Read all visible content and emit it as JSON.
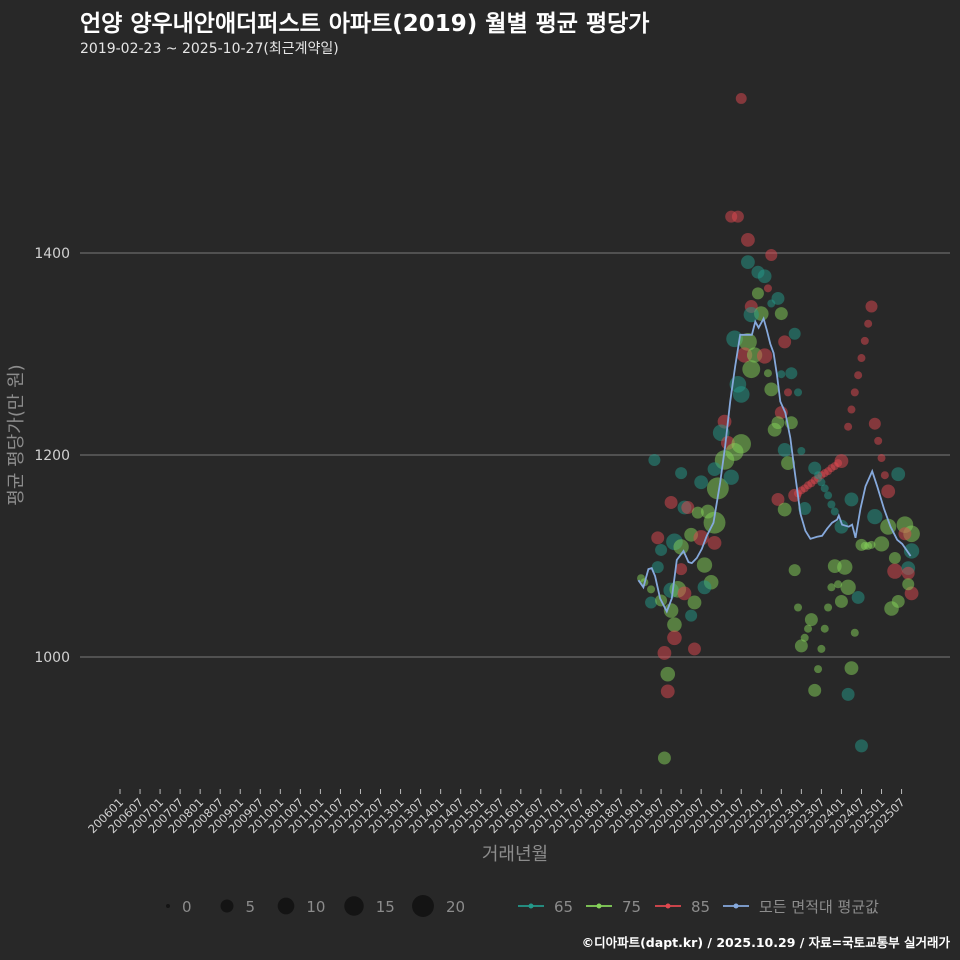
{
  "chart_data": {
    "type": "scatter",
    "title": "언양 양우내안애더퍼스트 아파트(2019) 월별 평균 평당가",
    "subtitle": "2019-02-23 ~ 2025-10-27(최근계약일)",
    "xlabel": "거래년월",
    "ylabel": "평균 평당가(만 원)",
    "x_index_origin": "2006-01",
    "x_index_unit": "month",
    "xlim": [
      0,
      240
    ],
    "ylim": [
      870,
      1570
    ],
    "y_ticks": [
      1000,
      1200,
      1400
    ],
    "grid": true,
    "x_ticks": [
      "200601",
      "200607",
      "200701",
      "200707",
      "200801",
      "200807",
      "200901",
      "200907",
      "201001",
      "201007",
      "201101",
      "201107",
      "201201",
      "201207",
      "201301",
      "201307",
      "201401",
      "201407",
      "201501",
      "201507",
      "201601",
      "201607",
      "201701",
      "201707",
      "201801",
      "201807",
      "201901",
      "201907",
      "202001",
      "202007",
      "202101",
      "202107",
      "202201",
      "202207",
      "202301",
      "202307",
      "202401",
      "202407",
      "202501",
      "202507"
    ],
    "colors": {
      "65": "#23998a",
      "75": "#86d35a",
      "85": "#e0484f",
      "avg": "#86a9dc"
    },
    "size_legend": {
      "values": [
        0,
        5,
        10,
        15,
        20
      ]
    },
    "color_legend": [
      {
        "key": "65",
        "label": "65"
      },
      {
        "key": "75",
        "label": "75"
      },
      {
        "key": "85",
        "label": "85"
      },
      {
        "key": "avg",
        "label": "모든 면적대 평균값"
      }
    ],
    "legend_position": "bottom",
    "points_fields": [
      "month_index",
      "value",
      "count",
      "area"
    ],
    "points": [
      [
        186,
        1553,
        3,
        "85"
      ],
      [
        183,
        1436,
        4,
        "85"
      ],
      [
        185,
        1436,
        4,
        "85"
      ],
      [
        188,
        1413,
        6,
        "85"
      ],
      [
        195,
        1398,
        4,
        "85"
      ],
      [
        188,
        1391,
        6,
        "65"
      ],
      [
        191,
        1381,
        5,
        "65"
      ],
      [
        193,
        1377,
        6,
        "65"
      ],
      [
        194,
        1365,
        1,
        "85"
      ],
      [
        191,
        1360,
        4,
        "75"
      ],
      [
        197,
        1355,
        5,
        "65"
      ],
      [
        195,
        1350,
        1,
        "65"
      ],
      [
        189,
        1347,
        5,
        "85"
      ],
      [
        198,
        1340,
        5,
        "75"
      ],
      [
        192,
        1340,
        7,
        "75"
      ],
      [
        189,
        1339,
        8,
        "65"
      ],
      [
        202,
        1320,
        4,
        "65"
      ],
      [
        184,
        1315,
        10,
        "65"
      ],
      [
        188,
        1312,
        12,
        "75"
      ],
      [
        199,
        1312,
        5,
        "85"
      ],
      [
        187,
        1299,
        8,
        "85"
      ],
      [
        190,
        1299,
        8,
        "75"
      ],
      [
        193,
        1298,
        8,
        "85"
      ],
      [
        189,
        1285,
        12,
        "75"
      ],
      [
        194,
        1281,
        1,
        "75"
      ],
      [
        198,
        1280,
        1,
        "65"
      ],
      [
        201,
        1281,
        4,
        "65"
      ],
      [
        185,
        1270,
        10,
        "65"
      ],
      [
        186,
        1260,
        10,
        "65"
      ],
      [
        195,
        1265,
        6,
        "75"
      ],
      [
        200,
        1262,
        1,
        "85"
      ],
      [
        203,
        1262,
        1,
        "65"
      ],
      [
        198,
        1242,
        5,
        "85"
      ],
      [
        201,
        1232,
        5,
        "75"
      ],
      [
        196,
        1225,
        6,
        "75"
      ],
      [
        197,
        1232,
        5,
        "75"
      ],
      [
        181,
        1233,
        6,
        "85"
      ],
      [
        180,
        1222,
        10,
        "65"
      ],
      [
        182,
        1212,
        6,
        "85"
      ],
      [
        186,
        1211,
        15,
        "75"
      ],
      [
        184,
        1203,
        12,
        "75"
      ],
      [
        199,
        1205,
        6,
        "65"
      ],
      [
        204,
        1204,
        1,
        "65"
      ],
      [
        160,
        1195,
        4,
        "65"
      ],
      [
        181,
        1195,
        15,
        "75"
      ],
      [
        178,
        1186,
        6,
        "65"
      ],
      [
        200,
        1192,
        6,
        "75"
      ],
      [
        168,
        1182,
        4,
        "65"
      ],
      [
        174,
        1173,
        6,
        "65"
      ],
      [
        179,
        1167,
        20,
        "75"
      ],
      [
        183,
        1178,
        8,
        "65"
      ],
      [
        208,
        1187,
        5,
        "65"
      ],
      [
        202,
        1160,
        5,
        "85"
      ],
      [
        197,
        1156,
        5,
        "85"
      ],
      [
        165,
        1153,
        5,
        "85"
      ],
      [
        169,
        1148,
        6,
        "65"
      ],
      [
        170,
        1148,
        5,
        "85"
      ],
      [
        199,
        1146,
        6,
        "75"
      ],
      [
        173,
        1143,
        4,
        "75"
      ],
      [
        176,
        1144,
        6,
        "75"
      ],
      [
        205,
        1147,
        5,
        "65"
      ],
      [
        178,
        1133,
        20,
        "75"
      ],
      [
        216,
        1129,
        6,
        "65"
      ],
      [
        219,
        1156,
        6,
        "65"
      ],
      [
        226,
        1139,
        8,
        "65"
      ],
      [
        230,
        1129,
        9,
        "75"
      ],
      [
        235,
        1131,
        10,
        "75"
      ],
      [
        237,
        1122,
        10,
        "75"
      ],
      [
        233,
        1181,
        6,
        "65"
      ],
      [
        230,
        1164,
        6,
        "85"
      ],
      [
        235,
        1122,
        5,
        "85"
      ],
      [
        222,
        1111,
        4,
        "75"
      ],
      [
        228,
        1112,
        8,
        "75"
      ],
      [
        161,
        1118,
        5,
        "85"
      ],
      [
        162,
        1106,
        4,
        "65"
      ],
      [
        166,
        1114,
        10,
        "65"
      ],
      [
        168,
        1109,
        8,
        "75"
      ],
      [
        171,
        1121,
        6,
        "75"
      ],
      [
        174,
        1118,
        8,
        "85"
      ],
      [
        178,
        1113,
        6,
        "85"
      ],
      [
        161,
        1089,
        4,
        "65"
      ],
      [
        175,
        1091,
        8,
        "75"
      ],
      [
        168,
        1087,
        4,
        "85"
      ],
      [
        214,
        1090,
        6,
        "75"
      ],
      [
        217,
        1089,
        8,
        "75"
      ],
      [
        202,
        1086,
        4,
        "75"
      ],
      [
        232,
        1098,
        4,
        "75"
      ],
      [
        236,
        1088,
        6,
        "65"
      ],
      [
        232,
        1085,
        8,
        "85"
      ],
      [
        236,
        1083,
        5,
        "85"
      ],
      [
        237,
        1063,
        6,
        "85"
      ],
      [
        236,
        1072,
        4,
        "75"
      ],
      [
        237,
        1105,
        8,
        "65"
      ],
      [
        165,
        1066,
        8,
        "65"
      ],
      [
        167,
        1067,
        10,
        "75"
      ],
      [
        169,
        1063,
        6,
        "85"
      ],
      [
        172,
        1054,
        6,
        "75"
      ],
      [
        177,
        1074,
        7,
        "75"
      ],
      [
        175,
        1069,
        6,
        "65"
      ],
      [
        159,
        1054,
        4,
        "65"
      ],
      [
        162,
        1056,
        4,
        "75"
      ],
      [
        218,
        1069,
        8,
        "75"
      ],
      [
        221,
        1059,
        5,
        "65"
      ],
      [
        216,
        1055,
        5,
        "75"
      ],
      [
        213,
        1069,
        1,
        "75"
      ],
      [
        215,
        1072,
        1,
        "75"
      ],
      [
        165,
        1046,
        7,
        "75"
      ],
      [
        171,
        1041,
        4,
        "65"
      ],
      [
        166,
        1032,
        7,
        "75"
      ],
      [
        166,
        1019,
        7,
        "85"
      ],
      [
        203,
        1049,
        1,
        "75"
      ],
      [
        212,
        1049,
        1,
        "75"
      ],
      [
        207,
        1037,
        5,
        "75"
      ],
      [
        206,
        1028,
        1,
        "75"
      ],
      [
        211,
        1028,
        1,
        "75"
      ],
      [
        205,
        1019,
        1,
        "75"
      ],
      [
        204,
        1011,
        5,
        "75"
      ],
      [
        210,
        1008,
        1,
        "75"
      ],
      [
        220,
        1024,
        1,
        "75"
      ],
      [
        233,
        1055,
        5,
        "75"
      ],
      [
        231,
        1048,
        7,
        "75"
      ],
      [
        163,
        1004,
        6,
        "85"
      ],
      [
        172,
        1008,
        5,
        "85"
      ],
      [
        164,
        983,
        7,
        "75"
      ],
      [
        164,
        966,
        6,
        "85"
      ],
      [
        219,
        989,
        6,
        "75"
      ],
      [
        209,
        988,
        1,
        "75"
      ],
      [
        208,
        967,
        5,
        "75"
      ],
      [
        218,
        963,
        5,
        "65"
      ],
      [
        222,
        912,
        5,
        "65"
      ],
      [
        163,
        900,
        5,
        "75"
      ],
      [
        218,
        1228,
        1,
        "85"
      ],
      [
        219,
        1245,
        1,
        "85"
      ],
      [
        220,
        1262,
        1,
        "85"
      ],
      [
        221,
        1279,
        1,
        "85"
      ],
      [
        222,
        1296,
        1,
        "85"
      ],
      [
        223,
        1313,
        1,
        "85"
      ],
      [
        224,
        1330,
        1,
        "85"
      ],
      [
        225,
        1347,
        4,
        "85"
      ],
      [
        226,
        1231,
        4,
        "85"
      ],
      [
        227,
        1214,
        1,
        "85"
      ],
      [
        228,
        1197,
        1,
        "85"
      ],
      [
        229,
        1180,
        1,
        "85"
      ],
      [
        203,
        1162,
        1,
        "85"
      ],
      [
        204,
        1165,
        1,
        "85"
      ],
      [
        205,
        1167,
        1,
        "85"
      ],
      [
        206,
        1170,
        1,
        "85"
      ],
      [
        207,
        1172,
        1,
        "85"
      ],
      [
        208,
        1175,
        1,
        "85"
      ],
      [
        209,
        1177,
        1,
        "85"
      ],
      [
        210,
        1180,
        1,
        "85"
      ],
      [
        211,
        1182,
        1,
        "85"
      ],
      [
        212,
        1184,
        1,
        "85"
      ],
      [
        213,
        1187,
        1,
        "85"
      ],
      [
        214,
        1189,
        1,
        "85"
      ],
      [
        215,
        1192,
        1,
        "85"
      ],
      [
        216,
        1194,
        6,
        "85"
      ],
      [
        209,
        1180,
        1,
        "65"
      ],
      [
        210,
        1173,
        1,
        "65"
      ],
      [
        211,
        1167,
        1,
        "65"
      ],
      [
        212,
        1160,
        1,
        "65"
      ],
      [
        213,
        1151,
        1,
        "65"
      ],
      [
        214,
        1144,
        1,
        "65"
      ],
      [
        156,
        1078,
        1,
        "75"
      ],
      [
        157,
        1074,
        1,
        "75"
      ],
      [
        159,
        1067,
        1,
        "75"
      ],
      [
        223,
        1110,
        1,
        "75"
      ],
      [
        224,
        1110,
        1,
        "75"
      ],
      [
        225,
        1111,
        1,
        "75"
      ]
    ],
    "average_series": {
      "name": "모든 면적대 평균값",
      "x": [
        155.2,
        156.7,
        158.2,
        159.2,
        160.2,
        161.7,
        163.7,
        165.2,
        166.7,
        168.7,
        170.2,
        171.2,
        172.7,
        174.2,
        175.7,
        177.7,
        179.7,
        181.2,
        182.7,
        184.2,
        185.7,
        187.7,
        189.2,
        190.2,
        191.2,
        192.7,
        193.7,
        194.7,
        195.7,
        196.7,
        197.7,
        199.2,
        200.7,
        201.7,
        203.7,
        205.2,
        206.7,
        208.7,
        210.2,
        211.7,
        213.2,
        214.7,
        215.2,
        216.2,
        218.2,
        219.2,
        220.2,
        221.7,
        223.2,
        225.2,
        226.7,
        228.7,
        230.7,
        232.7,
        234.2,
        236.7
      ],
      "y": [
        1076,
        1069,
        1087,
        1088,
        1080,
        1058,
        1045,
        1058,
        1096,
        1105,
        1094,
        1093,
        1098,
        1107,
        1120,
        1133,
        1173,
        1209,
        1253,
        1288,
        1319,
        1319,
        1319,
        1332,
        1326,
        1335,
        1323,
        1310,
        1301,
        1279,
        1253,
        1242,
        1217,
        1191,
        1142,
        1125,
        1117,
        1119,
        1120,
        1127,
        1133,
        1136,
        1140,
        1131,
        1129,
        1131,
        1118,
        1147,
        1169,
        1184,
        1169,
        1147,
        1129,
        1116,
        1112,
        1100
      ]
    }
  },
  "footer": "©디아파트(dapt.kr) / 2025.10.29 / 자료=국토교통부 실거래가"
}
